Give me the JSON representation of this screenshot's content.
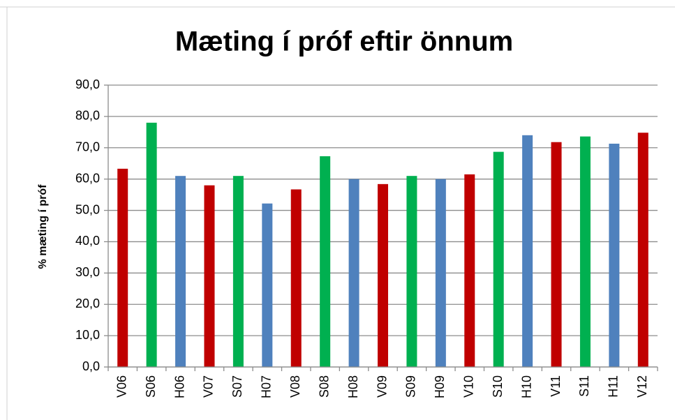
{
  "chart_data": {
    "type": "bar",
    "title": "Mæting í próf eftir önnum",
    "y_label": "% mæting í próf",
    "categories": [
      "V06",
      "S06",
      "H06",
      "V07",
      "S07",
      "H07",
      "V08",
      "S08",
      "H08",
      "V09",
      "S09",
      "H09",
      "V10",
      "S10",
      "H10",
      "V11",
      "S11",
      "H11",
      "V12"
    ],
    "values": [
      63.3,
      78.0,
      61.0,
      58.0,
      61.0,
      52.2,
      56.7,
      67.3,
      60.0,
      58.4,
      61.0,
      60.0,
      61.5,
      68.7,
      74.0,
      71.8,
      73.6,
      71.3,
      74.8
    ],
    "colors": [
      "#c00000",
      "#00b050",
      "#4f81bd",
      "#c00000",
      "#00b050",
      "#4f81bd",
      "#c00000",
      "#00b050",
      "#4f81bd",
      "#c00000",
      "#00b050",
      "#4f81bd",
      "#c00000",
      "#00b050",
      "#4f81bd",
      "#c00000",
      "#00b050",
      "#4f81bd",
      "#c00000"
    ],
    "ylim": [
      0,
      90
    ],
    "yticks": [
      {
        "value": 0,
        "label": "0,0"
      },
      {
        "value": 10,
        "label": "10,0"
      },
      {
        "value": 20,
        "label": "20,0"
      },
      {
        "value": 30,
        "label": "30,0"
      },
      {
        "value": 40,
        "label": "40,0"
      },
      {
        "value": 50,
        "label": "50,0"
      },
      {
        "value": 60,
        "label": "60,0"
      },
      {
        "value": 70,
        "label": "70,0"
      },
      {
        "value": 80,
        "label": "80,0"
      },
      {
        "value": 90,
        "label": "90,0"
      }
    ],
    "grid": true
  }
}
